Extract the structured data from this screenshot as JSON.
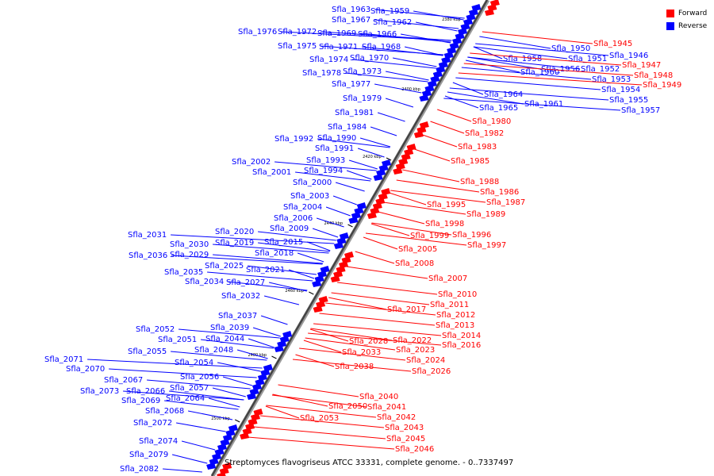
{
  "caption": "Streptomyces flavogriseus ATCC 33331, complete genome. - 0..7337497",
  "legend": [
    {
      "label": "Forward",
      "color": "#ff0000"
    },
    {
      "label": "Reverse",
      "color": "#0000ff"
    }
  ],
  "position_markers": [
    "2380 kbp",
    "2400 kbp",
    "2420 kbp",
    "2440 kbp",
    "2460 kbp",
    "2480 kbp",
    "2500 kbp"
  ],
  "reverse_genes": [
    "Sfla_1963",
    "Sfla_1959",
    "Sfla_1967",
    "Sfla_1962",
    "Sfla_1976",
    "Sfla_1972",
    "Sfla_1969",
    "Sfla_1966",
    "Sfla_1975",
    "Sfla_1971",
    "Sfla_1968",
    "Sfla_1974",
    "Sfla_1970",
    "Sfla_1978",
    "Sfla_1973",
    "Sfla_1977",
    "Sfla_1979",
    "Sfla_1981",
    "Sfla_1984",
    "Sfla_1992",
    "Sfla_1990",
    "Sfla_1991",
    "Sfla_2002",
    "Sfla_1993",
    "Sfla_2001",
    "Sfla_1994",
    "Sfla_2000",
    "Sfla_2003",
    "Sfla_2004",
    "Sfla_2006",
    "Sfla_2009",
    "Sfla_2020",
    "Sfla_2031",
    "Sfla_2030",
    "Sfla_2019",
    "Sfla_2015",
    "Sfla_2036",
    "Sfla_2029",
    "Sfla_2018",
    "Sfla_2025",
    "Sfla_2021",
    "Sfla_2035",
    "Sfla_2034",
    "Sfla_2027",
    "Sfla_2032",
    "Sfla_2037",
    "Sfla_2052",
    "Sfla_2039",
    "Sfla_2051",
    "Sfla_2044",
    "Sfla_2055",
    "Sfla_2048",
    "Sfla_2071",
    "Sfla_2054",
    "Sfla_2070",
    "Sfla_2067",
    "Sfla_2056",
    "Sfla_2073",
    "Sfla_2066",
    "Sfla_2057",
    "Sfla_2069",
    "Sfla_2064",
    "Sfla_2068",
    "Sfla_2072",
    "Sfla_2074",
    "Sfla_2079",
    "Sfla_2082",
    "Sfla_1958",
    "Sfla_1950",
    "Sfla_1951",
    "Sfla_1960",
    "Sfla_1956",
    "Sfla_1952",
    "Sfla_1953",
    "Sfla_1954",
    "Sfla_1955",
    "Sfla_1957",
    "Sfla_1964",
    "Sfla_1965",
    "Sfla_1961",
    "Sfla_1946"
  ],
  "forward_genes": [
    "Sfla_1945",
    "Sfla_1947",
    "Sfla_1948",
    "Sfla_1949",
    "Sfla_1980",
    "Sfla_1982",
    "Sfla_1983",
    "Sfla_1985",
    "Sfla_1988",
    "Sfla_1986",
    "Sfla_1987",
    "Sfla_1989",
    "Sfla_1995",
    "Sfla_1998",
    "Sfla_1996",
    "Sfla_1999",
    "Sfla_1997",
    "Sfla_2005",
    "Sfla_2008",
    "Sfla_2007",
    "Sfla_2010",
    "Sfla_2011",
    "Sfla_2012",
    "Sfla_2017",
    "Sfla_2013",
    "Sfla_2014",
    "Sfla_2016",
    "Sfla_2022",
    "Sfla_2028",
    "Sfla_2023",
    "Sfla_2033",
    "Sfla_2024",
    "Sfla_2026",
    "Sfla_2038",
    "Sfla_2040",
    "Sfla_2041",
    "Sfla_2042",
    "Sfla_2050",
    "Sfla_2053",
    "Sfla_2043",
    "Sfla_2045",
    "Sfla_2046"
  ]
}
